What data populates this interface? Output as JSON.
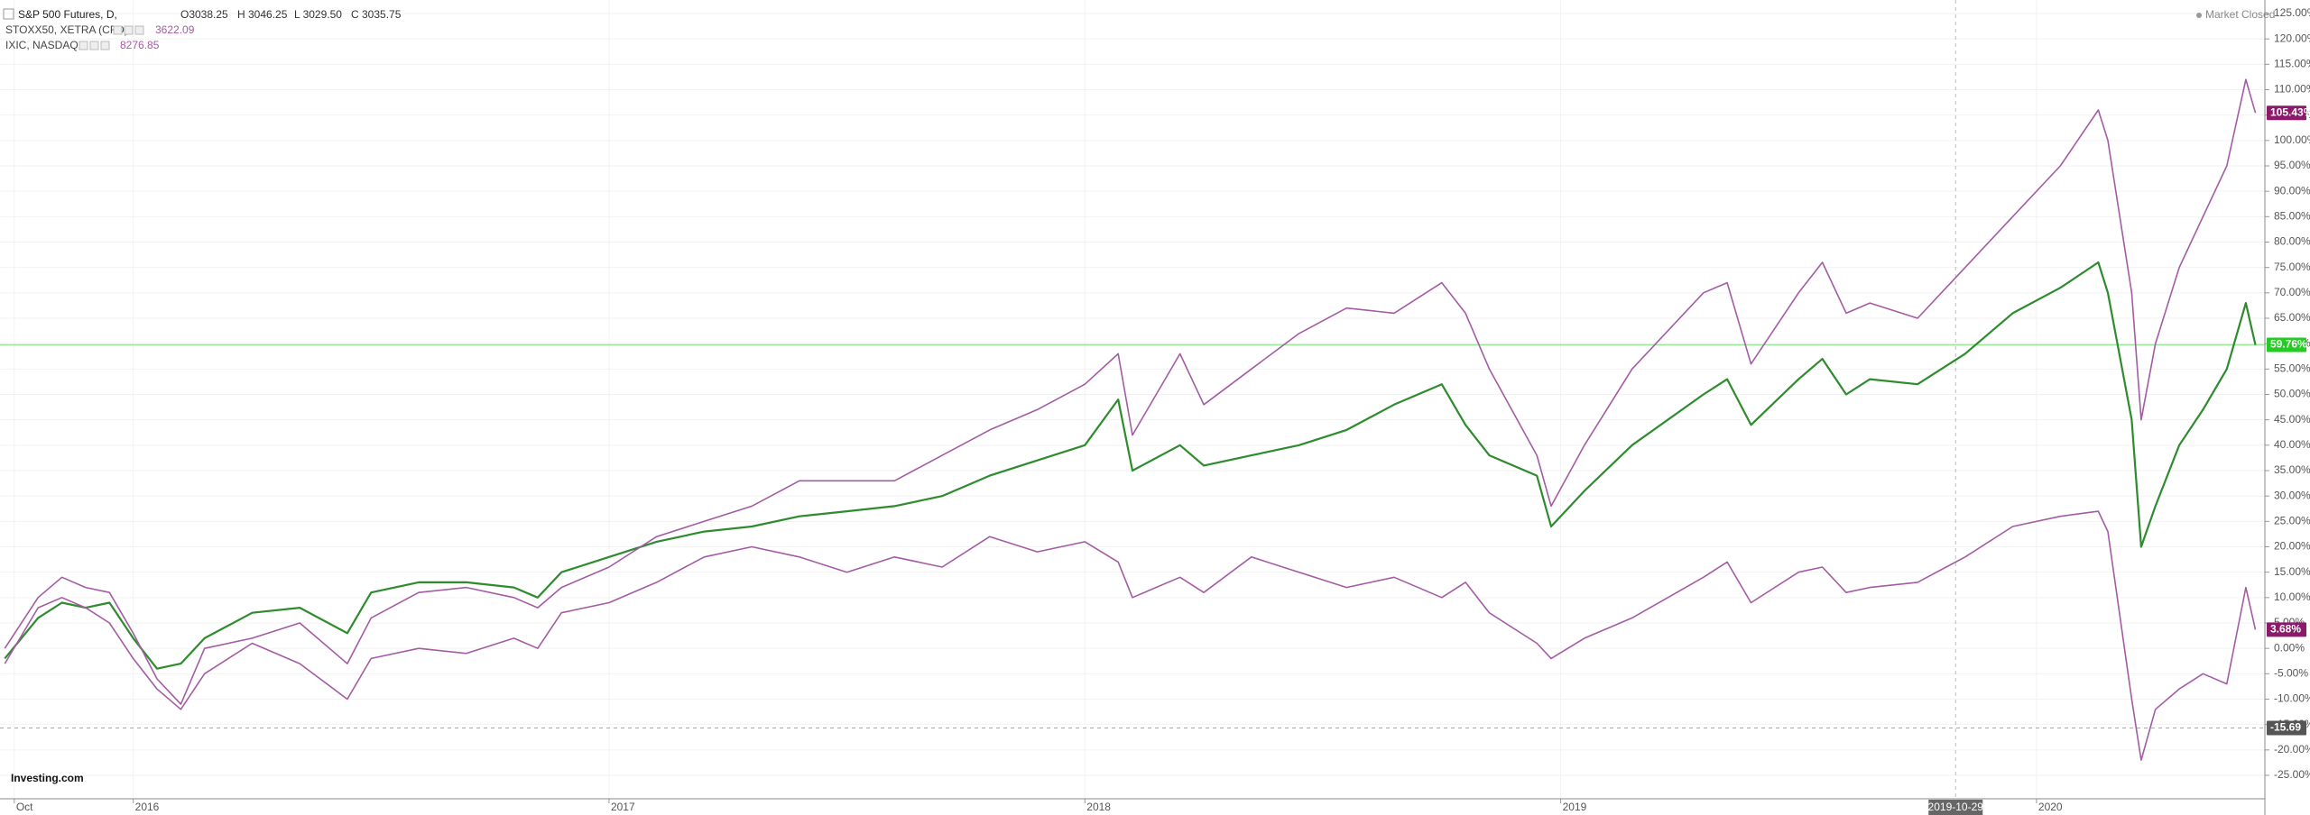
{
  "chart_data": {
    "type": "line",
    "title": "S&P 500 Futures, D,",
    "ohlc": [
      "O3038.25",
      "H 3046.25",
      "L 3029.50",
      "C 3035.75"
    ],
    "status": "Market Closed",
    "logo": "Investing.com",
    "x": [
      2015.73,
      2015.8,
      2015.85,
      2015.9,
      2015.95,
      2016.0,
      2016.05,
      2016.1,
      2016.15,
      2016.25,
      2016.35,
      2016.45,
      2016.5,
      2016.6,
      2016.7,
      2016.8,
      2016.85,
      2016.9,
      2017.0,
      2017.1,
      2017.2,
      2017.3,
      2017.4,
      2017.5,
      2017.6,
      2017.7,
      2017.8,
      2017.9,
      2018.0,
      2018.07,
      2018.1,
      2018.2,
      2018.25,
      2018.35,
      2018.45,
      2018.55,
      2018.65,
      2018.75,
      2018.8,
      2018.85,
      2018.95,
      2018.98,
      2019.05,
      2019.15,
      2019.3,
      2019.35,
      2019.4,
      2019.5,
      2019.55,
      2019.6,
      2019.65,
      2019.75,
      2019.85,
      2019.95,
      2020.05,
      2020.13,
      2020.15,
      2020.2,
      2020.22,
      2020.25,
      2020.3,
      2020.35,
      2020.4,
      2020.44,
      2020.46
    ],
    "series": [
      {
        "name": "S&P 500 Futures, D,",
        "color": "#2e8b2e",
        "values": [
          -2,
          6,
          9,
          8,
          9,
          2,
          -4,
          -3,
          2,
          7,
          8,
          3,
          11,
          13,
          13,
          12,
          10,
          15,
          18,
          21,
          23,
          24,
          26,
          27,
          28,
          30,
          34,
          37,
          40,
          49,
          35,
          40,
          36,
          38,
          40,
          43,
          48,
          52,
          44,
          38,
          34,
          24,
          31,
          40,
          50,
          53,
          44,
          53,
          57,
          50,
          53,
          52,
          58,
          66,
          71,
          76,
          70,
          45,
          20,
          28,
          40,
          47,
          55,
          68,
          59.76
        ]
      },
      {
        "name": "STOXX50, XETRA (CFD)",
        "color": "#a35ca3",
        "legend_value": "3622.09",
        "values": [
          -3,
          8,
          10,
          8,
          5,
          -2,
          -8,
          -12,
          -5,
          1,
          -3,
          -10,
          -2,
          0,
          -1,
          2,
          0,
          7,
          9,
          13,
          18,
          20,
          18,
          15,
          18,
          16,
          22,
          19,
          21,
          17,
          10,
          14,
          11,
          18,
          15,
          12,
          14,
          10,
          13,
          7,
          1,
          -2,
          2,
          6,
          14,
          17,
          9,
          15,
          16,
          11,
          12,
          13,
          18,
          24,
          26,
          27,
          23,
          -10,
          -22,
          -12,
          -8,
          -5,
          -7,
          12,
          3.68
        ]
      },
      {
        "name": "IXIC, NASDAQ",
        "color": "#a35ca3",
        "legend_value": "8276.85",
        "values": [
          0,
          10,
          14,
          12,
          11,
          3,
          -6,
          -11,
          0,
          2,
          5,
          -3,
          6,
          11,
          12,
          10,
          8,
          12,
          16,
          22,
          25,
          28,
          33,
          33,
          33,
          38,
          43,
          47,
          52,
          58,
          42,
          58,
          48,
          55,
          62,
          67,
          66,
          72,
          66,
          55,
          38,
          28,
          40,
          55,
          70,
          72,
          56,
          70,
          76,
          66,
          68,
          65,
          75,
          85,
          95,
          106,
          100,
          70,
          45,
          60,
          75,
          85,
          95,
          112,
          105.43
        ]
      }
    ],
    "xlim": [
      2015.72,
      2020.48
    ],
    "xticks": [
      {
        "value": 2015.75,
        "label": "Oct"
      },
      2016,
      2017,
      2018,
      2019,
      2020
    ],
    "ylim": [
      -25,
      125
    ],
    "yticks": [
      {
        "value": -25,
        "label": "-25.00%"
      },
      {
        "value": -20,
        "label": "-20.00%"
      },
      {
        "value": -15,
        "label": "-15.00%"
      },
      {
        "value": -10,
        "label": "-10.00%"
      },
      {
        "value": -5,
        "label": "-5.00%"
      },
      {
        "value": 0,
        "label": "0.00%"
      },
      {
        "value": 5,
        "label": "5.00%"
      },
      {
        "value": 10,
        "label": "10.00%"
      },
      {
        "value": 15,
        "label": "15.00%"
      },
      {
        "value": 20,
        "label": "20.00%"
      },
      {
        "value": 25,
        "label": "25.00%"
      },
      {
        "value": 30,
        "label": "30.00%"
      },
      {
        "value": 35,
        "label": "35.00%"
      },
      {
        "value": 40,
        "label": "40.00%"
      },
      {
        "value": 45,
        "label": "45.00%"
      },
      {
        "value": 50,
        "label": "50.00%"
      },
      {
        "value": 55,
        "label": "55.00%"
      },
      {
        "value": 60,
        "label": "60.00%"
      },
      {
        "value": 65,
        "label": "65.00%"
      },
      {
        "value": 70,
        "label": "70.00%"
      },
      {
        "value": 75,
        "label": "75.00%"
      },
      {
        "value": 80,
        "label": "80.00%"
      },
      {
        "value": 85,
        "label": "85.00%"
      },
      {
        "value": 90,
        "label": "90.00%"
      },
      {
        "value": 95,
        "label": "95.00%"
      },
      {
        "value": 100,
        "label": "100.00%"
      },
      {
        "value": 105,
        "label": "105.00%"
      },
      {
        "value": 110,
        "label": "110.00%"
      },
      {
        "value": 115,
        "label": "115.00%"
      },
      {
        "value": 120,
        "label": "120.00%"
      },
      {
        "value": 125,
        "label": "125.00%"
      }
    ],
    "grid": true,
    "crosshair": {
      "value": 2019.83,
      "label": "2019-10-29"
    },
    "price_tags": [
      {
        "value": 105.43,
        "label": "105.43%",
        "color": "#8b1a6b"
      },
      {
        "value": 59.76,
        "label": "59.76%",
        "color": "#22cc22",
        "line": "solid"
      },
      {
        "value": 3.68,
        "label": "3.68%",
        "color": "#8b1a6b"
      },
      {
        "value": -15.69,
        "label": "-15.69",
        "color": "#555555",
        "line": "dashed"
      }
    ]
  }
}
